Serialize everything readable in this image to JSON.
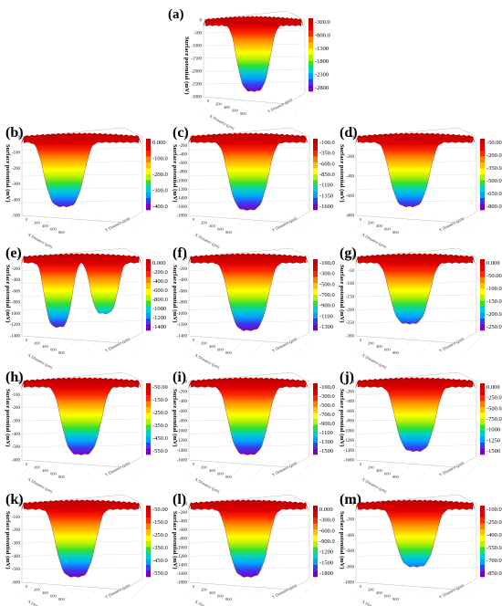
{
  "figure": {
    "colormap": [
      "#7a00c8",
      "#3a3af0",
      "#00a0ff",
      "#00d0c8",
      "#30e030",
      "#b8f000",
      "#ffff00",
      "#ffc000",
      "#ff8000",
      "#ff2800",
      "#e00000",
      "#c80000"
    ],
    "surface_axis_label": "Surface potential (mV)",
    "axis_tick_values": [
      "0",
      "200",
      "400",
      "600",
      "800"
    ],
    "axis_names": [
      "X Distance (μm)",
      "Y Distance (μm)"
    ]
  },
  "chart_data": [
    {
      "id": "a",
      "type": "surface3d",
      "label": "(a)",
      "ylabel": "Surface potential (mV)",
      "zticks": [
        "0",
        "-500",
        "-1000",
        "-1500",
        "-2000",
        "-2500",
        "-3000"
      ],
      "colorbar_ticks": [
        "-300.0",
        "-800.0",
        "-1300",
        "-1800",
        "-2300",
        "-2800"
      ],
      "zmin": -3000,
      "wells": [
        {
          "depth": 1.0,
          "cx": 0.5
        }
      ]
    },
    {
      "id": "b",
      "type": "surface3d",
      "label": "(b)",
      "ylabel": "Surface potential (mV)",
      "zticks": [
        "0",
        "-100",
        "-200",
        "-300",
        "-400",
        "-500"
      ],
      "colorbar_ticks": [
        "0.000",
        "-100.0",
        "-200.0",
        "-300.0",
        "-400.0"
      ],
      "zmin": -500,
      "wells": [
        {
          "depth": 0.95,
          "cx": 0.35
        }
      ]
    },
    {
      "id": "c",
      "type": "surface3d",
      "label": "(c)",
      "ylabel": "Surface potential (mV)",
      "zticks": [
        "0",
        "-200",
        "-400",
        "-600",
        "-800",
        "-1000",
        "-1200",
        "-1400",
        "-1600",
        "-1800"
      ],
      "colorbar_ticks": [
        "-100.0",
        "-350.0",
        "-600.0",
        "-850.0",
        "-1100",
        "-1350",
        "-1600"
      ],
      "zmin": -1800,
      "wells": [
        {
          "depth": 1.0,
          "cx": 0.5
        }
      ]
    },
    {
      "id": "d",
      "type": "surface3d",
      "label": "(d)",
      "ylabel": "Surface potential (mV)",
      "zticks": [
        "0",
        "-200",
        "-400",
        "-600",
        "-800"
      ],
      "colorbar_ticks": [
        "-50.00",
        "-200.0",
        "-350.0",
        "-500.0",
        "-650.0",
        "-800.0"
      ],
      "zmin": -900,
      "wells": [
        {
          "depth": 0.95,
          "cx": 0.45
        }
      ]
    },
    {
      "id": "e",
      "type": "surface3d",
      "label": "(e)",
      "ylabel": "Surface potential (mV)",
      "zticks": [
        "0",
        "-200",
        "-400",
        "-600",
        "-800",
        "-1000",
        "-1200",
        "-1400"
      ],
      "colorbar_ticks": [
        "0.000",
        "-200.0",
        "-400.0",
        "-600.0",
        "-800.0",
        "-1000",
        "-1200",
        "-1400"
      ],
      "zmin": -1500,
      "wells": [
        {
          "depth": 0.95,
          "cx": 0.3
        },
        {
          "depth": 0.75,
          "cx": 0.7
        }
      ]
    },
    {
      "id": "f",
      "type": "surface3d",
      "label": "(f)",
      "ylabel": "Surface potential (mV)",
      "zticks": [
        "0",
        "-200",
        "-400",
        "-600",
        "-800",
        "-1000",
        "-1200",
        "-1400"
      ],
      "colorbar_ticks": [
        "-100.0",
        "-300.0",
        "-500.0",
        "-700.0",
        "-900.0",
        "-1100",
        "-1300"
      ],
      "zmin": -1400,
      "wells": [
        {
          "depth": 1.0,
          "cx": 0.5
        }
      ]
    },
    {
      "id": "g",
      "type": "surface3d",
      "label": "(g)",
      "ylabel": "Surface potential (mV)",
      "zticks": [
        "0",
        "-50",
        "-100",
        "-150",
        "-200",
        "-250",
        "-300"
      ],
      "colorbar_ticks": [
        "0.000",
        "-50.00",
        "-100.0",
        "-150.0",
        "-200.0",
        "-250.0"
      ],
      "zmin": -300,
      "wells": [
        {
          "depth": 0.9,
          "cx": 0.45
        }
      ]
    },
    {
      "id": "h",
      "type": "surface3d",
      "label": "(h)",
      "ylabel": "Surface potential (mV)",
      "zticks": [
        "0",
        "-100",
        "-200",
        "-300",
        "-400",
        "-500",
        "-600"
      ],
      "colorbar_ticks": [
        "-50.00",
        "-150.0",
        "-250.0",
        "-350.0",
        "-450.0",
        "-550.0"
      ],
      "zmin": -600,
      "wells": [
        {
          "depth": 1.0,
          "cx": 0.5
        }
      ]
    },
    {
      "id": "i",
      "type": "surface3d",
      "label": "(i)",
      "ylabel": "Surface potential (mV)",
      "zticks": [
        "0",
        "-200",
        "-400",
        "-600",
        "-800",
        "-1000",
        "-1200",
        "-1400",
        "-1600"
      ],
      "colorbar_ticks": [
        "-100.0",
        "-300.0",
        "-500.0",
        "-700.0",
        "-900.0",
        "-1100",
        "-1300",
        "-1500"
      ],
      "zmin": -1600,
      "wells": [
        {
          "depth": 1.0,
          "cx": 0.5
        }
      ]
    },
    {
      "id": "j",
      "type": "surface3d",
      "label": "(j)",
      "ylabel": "Surface potential (mV)",
      "zticks": [
        "0",
        "-200",
        "-400",
        "-600",
        "-800",
        "-1000",
        "-1200",
        "-1400",
        "-1600"
      ],
      "colorbar_ticks": [
        "0.000",
        "-250.0",
        "-500.0",
        "-750.0",
        "-1000",
        "-1250",
        "-1500"
      ],
      "zmin": -1600,
      "wells": [
        {
          "depth": 0.95,
          "cx": 0.5
        }
      ]
    },
    {
      "id": "k",
      "type": "surface3d",
      "label": "(k)",
      "ylabel": "Surface potential (mV)",
      "zticks": [
        "0",
        "-100",
        "-200",
        "-300",
        "-400",
        "-500",
        "-600"
      ],
      "colorbar_ticks": [
        "-50.00",
        "-150.0",
        "-250.0",
        "-350.0",
        "-450.0",
        "-550.0"
      ],
      "zmin": -600,
      "wells": [
        {
          "depth": 1.0,
          "cx": 0.45
        }
      ]
    },
    {
      "id": "l",
      "type": "surface3d",
      "label": "(l)",
      "ylabel": "Surface potential (mV)",
      "zticks": [
        "0",
        "-200",
        "-400",
        "-600",
        "-800",
        "-1000",
        "-1200",
        "-1400",
        "-1600",
        "-1800"
      ],
      "colorbar_ticks": [
        "0.000",
        "-300.0",
        "-600.0",
        "-900.0",
        "-1200",
        "-1500",
        "-1800"
      ],
      "zmin": -1900,
      "wells": [
        {
          "depth": 1.0,
          "cx": 0.5
        }
      ]
    },
    {
      "id": "m",
      "type": "surface3d",
      "label": "(m)",
      "ylabel": "Surface potential (mV)",
      "zticks": [
        "0",
        "-200",
        "-400",
        "-600",
        "-800",
        "-1000"
      ],
      "colorbar_ticks": [
        "-100.0",
        "-250.0",
        "-400.0",
        "-550.0",
        "-700.0",
        "-850.0"
      ],
      "zmin": -1000,
      "wells": [
        {
          "depth": 0.85,
          "cx": 0.5
        }
      ]
    }
  ]
}
